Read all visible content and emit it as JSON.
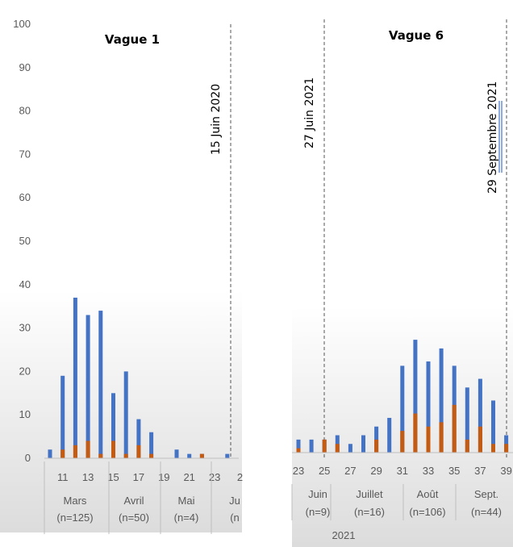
{
  "chart_data": [
    {
      "type": "bar",
      "title": "Vague 1",
      "stacked": true,
      "ylim": [
        0,
        100
      ],
      "yticks": [
        0,
        10,
        20,
        30,
        40,
        50,
        60,
        70,
        80,
        90,
        100
      ],
      "x": [
        10,
        11,
        12,
        13,
        14,
        15,
        16,
        17,
        18,
        19,
        20,
        21,
        22,
        23,
        24
      ],
      "xtick_labels": [
        "11",
        "13",
        "15",
        "17",
        "19",
        "21",
        "23",
        "2"
      ],
      "series": [
        {
          "color": "#4472C4",
          "values": [
            2,
            19,
            37,
            33,
            34,
            15,
            20,
            9,
            6,
            0,
            2,
            1,
            1,
            0,
            1
          ]
        },
        {
          "color": "#C55A11",
          "values": [
            0,
            2,
            3,
            4,
            1,
            4,
            1,
            3,
            1,
            0,
            0,
            0,
            1,
            0,
            0
          ]
        }
      ],
      "vline": {
        "label": "15 Juin 2020"
      },
      "month_groups": [
        {
          "label": "Mars",
          "count": "(n=125)"
        },
        {
          "label": "Avril",
          "count": "(n=50)"
        },
        {
          "label": "Mai",
          "count": "(n=4)"
        },
        {
          "label": "Ju",
          "count": "(n"
        }
      ],
      "grid": false
    },
    {
      "type": "bar",
      "title": "Vague 6",
      "stacked": true,
      "ylim": [
        0,
        100
      ],
      "x": [
        23,
        24,
        25,
        26,
        27,
        28,
        29,
        30,
        31,
        32,
        33,
        34,
        35,
        36,
        37,
        38,
        39
      ],
      "xtick_labels": [
        "23",
        "25",
        "27",
        "29",
        "31",
        "33",
        "35",
        "37",
        "39"
      ],
      "series": [
        {
          "color": "#4472C4",
          "values": [
            3,
            3,
            3,
            4,
            2,
            4,
            6,
            8,
            20,
            26,
            21,
            24,
            20,
            15,
            17,
            12,
            4
          ]
        },
        {
          "color": "#C55A11",
          "values": [
            1,
            0,
            3,
            2,
            0,
            0,
            3,
            0,
            5,
            9,
            6,
            7,
            11,
            3,
            6,
            2,
            2
          ]
        }
      ],
      "vlines": [
        {
          "label": "27 Juin 2021"
        },
        {
          "label": "29 Septembre 2021"
        }
      ],
      "month_groups": [
        {
          "label": "Juin",
          "count": "(n=9)"
        },
        {
          "label": "Juillet",
          "count": "(n=16)"
        },
        {
          "label": "Août",
          "count": "(n=106)"
        },
        {
          "label": "Sept.",
          "count": "(n=44)"
        }
      ],
      "year_label": "2021",
      "grid": false
    }
  ]
}
